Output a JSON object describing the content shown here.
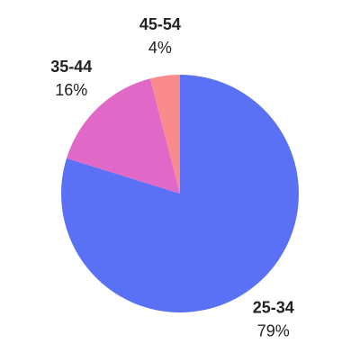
{
  "chart_data": {
    "type": "pie",
    "categories": [
      "25-34",
      "35-44",
      "45-54"
    ],
    "values": [
      79,
      16,
      4
    ],
    "value_labels": [
      "79%",
      "16%",
      "4%"
    ],
    "colors": [
      "#5a70f5",
      "#e068c6",
      "#f98b8c"
    ]
  }
}
